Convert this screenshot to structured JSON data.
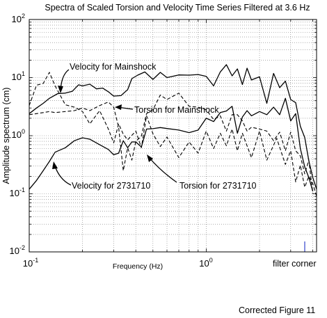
{
  "chart_data": {
    "type": "line",
    "title": "Spectra of Scaled Torsion and Velocity Time Series Filtered at 3.6 Hz",
    "xlabel": "Frequency (Hz)",
    "ylabel": "Amplitude spectrum (cm)",
    "x_scale": "log",
    "y_scale": "log",
    "xlim": [
      0.1,
      4.2
    ],
    "ylim": [
      0.01,
      100
    ],
    "grid": true,
    "x_tick_labels": [
      "10^-1",
      "10^0"
    ],
    "y_tick_labels": [
      "10^-2",
      "10^-1",
      "10^0",
      "10^1",
      "10^2"
    ],
    "series": [
      {
        "name": "Velocity for Mainshock",
        "style": "solid",
        "points": [
          [
            0.1,
            2.4
          ],
          [
            0.11,
            3
          ],
          [
            0.12,
            3.6
          ],
          [
            0.13,
            4.4
          ],
          [
            0.145,
            5.3
          ],
          [
            0.16,
            5.4
          ],
          [
            0.175,
            5.8
          ],
          [
            0.19,
            7.5
          ],
          [
            0.2,
            7.2
          ],
          [
            0.22,
            7.7
          ],
          [
            0.24,
            6.4
          ],
          [
            0.26,
            6.6
          ],
          [
            0.28,
            5.7
          ],
          [
            0.3,
            4.8
          ],
          [
            0.33,
            4.9
          ],
          [
            0.36,
            6.2
          ],
          [
            0.38,
            9.6
          ],
          [
            0.41,
            11
          ],
          [
            0.45,
            12.5
          ],
          [
            0.5,
            9.3
          ],
          [
            0.55,
            12.3
          ],
          [
            0.6,
            10
          ],
          [
            0.7,
            11.1
          ],
          [
            0.8,
            11
          ],
          [
            0.9,
            11.3
          ],
          [
            1.0,
            10.5
          ],
          [
            1.1,
            7.2
          ],
          [
            1.2,
            12.5
          ],
          [
            1.3,
            16.7
          ],
          [
            1.4,
            10.7
          ],
          [
            1.5,
            14.1
          ],
          [
            1.6,
            7.6
          ],
          [
            1.7,
            14.5
          ],
          [
            1.8,
            9.1
          ],
          [
            2.0,
            10.3
          ],
          [
            2.2,
            3.6
          ],
          [
            2.4,
            11.8
          ],
          [
            2.6,
            6.7
          ],
          [
            2.8,
            8.7
          ],
          [
            3.0,
            4.2
          ],
          [
            3.2,
            3.7
          ],
          [
            3.4,
            1.45
          ],
          [
            3.6,
            0.93
          ],
          [
            3.8,
            0.37
          ],
          [
            4.0,
            0.19
          ],
          [
            4.2,
            0.12
          ]
        ]
      },
      {
        "name": "Torsion for Mainshock",
        "style": "dashed",
        "points": [
          [
            0.1,
            3.3
          ],
          [
            0.11,
            7.4
          ],
          [
            0.12,
            7.9
          ],
          [
            0.13,
            12.3
          ],
          [
            0.14,
            7.2
          ],
          [
            0.16,
            3.4
          ],
          [
            0.18,
            3.1
          ],
          [
            0.2,
            2.6
          ],
          [
            0.22,
            1.6
          ],
          [
            0.25,
            2.7
          ],
          [
            0.28,
            1.3
          ],
          [
            0.3,
            0.75
          ],
          [
            0.32,
            1.6
          ],
          [
            0.34,
            1.06
          ],
          [
            0.36,
            0.85
          ],
          [
            0.4,
            1.2
          ],
          [
            0.43,
            0.62
          ],
          [
            0.46,
            2.2
          ],
          [
            0.5,
            1.08
          ],
          [
            0.55,
            0.65
          ],
          [
            0.6,
            0.95
          ],
          [
            0.7,
            0.42
          ],
          [
            0.8,
            0.78
          ],
          [
            0.9,
            0.5
          ],
          [
            1.0,
            1.2
          ],
          [
            1.1,
            0.6
          ],
          [
            1.2,
            1.1
          ],
          [
            1.3,
            0.67
          ],
          [
            1.4,
            1.3
          ],
          [
            1.5,
            0.55
          ],
          [
            1.6,
            1.1
          ],
          [
            1.8,
            0.42
          ],
          [
            2.0,
            1.2
          ],
          [
            2.2,
            0.38
          ],
          [
            2.5,
            0.9
          ],
          [
            2.8,
            0.32
          ],
          [
            3.0,
            0.55
          ],
          [
            3.2,
            0.16
          ],
          [
            3.4,
            0.31
          ],
          [
            3.6,
            0.13
          ],
          [
            3.8,
            0.2
          ],
          [
            4.0,
            0.15
          ],
          [
            4.2,
            0.09
          ]
        ]
      },
      {
        "name": "Velocity for 2731710",
        "style": "solid",
        "points": [
          [
            0.1,
            0.12
          ],
          [
            0.11,
            0.17
          ],
          [
            0.12,
            0.25
          ],
          [
            0.13,
            0.36
          ],
          [
            0.14,
            0.52
          ],
          [
            0.16,
            0.62
          ],
          [
            0.18,
            0.82
          ],
          [
            0.2,
            0.92
          ],
          [
            0.22,
            0.87
          ],
          [
            0.25,
            0.7
          ],
          [
            0.28,
            0.58
          ],
          [
            0.3,
            0.47
          ],
          [
            0.32,
            0.5
          ],
          [
            0.34,
            0.82
          ],
          [
            0.36,
            0.62
          ],
          [
            0.38,
            0.78
          ],
          [
            0.4,
            0.78
          ],
          [
            0.43,
            0.64
          ],
          [
            0.46,
            1.3
          ],
          [
            0.5,
            1.32
          ],
          [
            0.55,
            1.38
          ],
          [
            0.6,
            1.33
          ],
          [
            0.7,
            1.25
          ],
          [
            0.8,
            1.13
          ],
          [
            0.9,
            1.25
          ],
          [
            1.0,
            2.0
          ],
          [
            1.1,
            1.75
          ],
          [
            1.2,
            2.5
          ],
          [
            1.3,
            2.66
          ],
          [
            1.4,
            3.2
          ],
          [
            1.5,
            1.1
          ],
          [
            1.6,
            2.1
          ],
          [
            1.7,
            2.7
          ],
          [
            1.8,
            2.2
          ],
          [
            2.0,
            2.6
          ],
          [
            2.2,
            2.3
          ],
          [
            2.4,
            3.1
          ],
          [
            2.6,
            2.3
          ],
          [
            2.8,
            4.4
          ],
          [
            3.0,
            1.8
          ],
          [
            3.2,
            2.4
          ],
          [
            3.4,
            0.6
          ],
          [
            3.6,
            0.29
          ],
          [
            3.8,
            0.19
          ],
          [
            4.0,
            0.11
          ]
        ]
      },
      {
        "name": "Torsion for 2731710",
        "style": "dashed",
        "points": [
          [
            0.1,
            2.3
          ],
          [
            0.11,
            2.4
          ],
          [
            0.12,
            2.5
          ],
          [
            0.13,
            2.6
          ],
          [
            0.14,
            2.5
          ],
          [
            0.16,
            2.6
          ],
          [
            0.18,
            2.7
          ],
          [
            0.2,
            3.0
          ],
          [
            0.22,
            2.7
          ],
          [
            0.25,
            3.3
          ],
          [
            0.28,
            3.8
          ],
          [
            0.3,
            3.1
          ],
          [
            0.32,
            1.4
          ],
          [
            0.34,
            0.25
          ],
          [
            0.36,
            0.62
          ],
          [
            0.38,
            0.38
          ],
          [
            0.4,
            0.8
          ],
          [
            0.43,
            0.98
          ],
          [
            0.46,
            2.4
          ],
          [
            0.5,
            2.8
          ],
          [
            0.55,
            5.0
          ],
          [
            0.6,
            4.2
          ],
          [
            0.7,
            5.4
          ],
          [
            0.8,
            3.2
          ],
          [
            0.9,
            3.1
          ],
          [
            1.0,
            2.8
          ],
          [
            1.1,
            1.9
          ],
          [
            1.2,
            2.2
          ],
          [
            1.3,
            1.2
          ],
          [
            1.4,
            2.3
          ],
          [
            1.5,
            2.3
          ],
          [
            1.6,
            1.8
          ],
          [
            1.7,
            1.2
          ],
          [
            1.8,
            1.4
          ],
          [
            2.0,
            1.3
          ],
          [
            2.2,
            1.2
          ],
          [
            2.4,
            0.82
          ],
          [
            2.6,
            1.15
          ],
          [
            2.8,
            0.55
          ],
          [
            3.0,
            1.15
          ],
          [
            3.2,
            0.55
          ],
          [
            3.4,
            0.45
          ],
          [
            3.6,
            0.22
          ],
          [
            3.8,
            0.38
          ],
          [
            4.0,
            0.1
          ]
        ]
      }
    ],
    "annotations": [
      {
        "text": "Velocity for Mainshock"
      },
      {
        "text": "Torsion for Mainshock"
      },
      {
        "text": "Velocity for 2731710"
      },
      {
        "text": "Torsion for 2731710"
      },
      {
        "text": "filter corner"
      }
    ],
    "filter_corner_x": 3.6,
    "filter_corner_color": "#3344cc",
    "caption": "Corrected Figure 11"
  }
}
